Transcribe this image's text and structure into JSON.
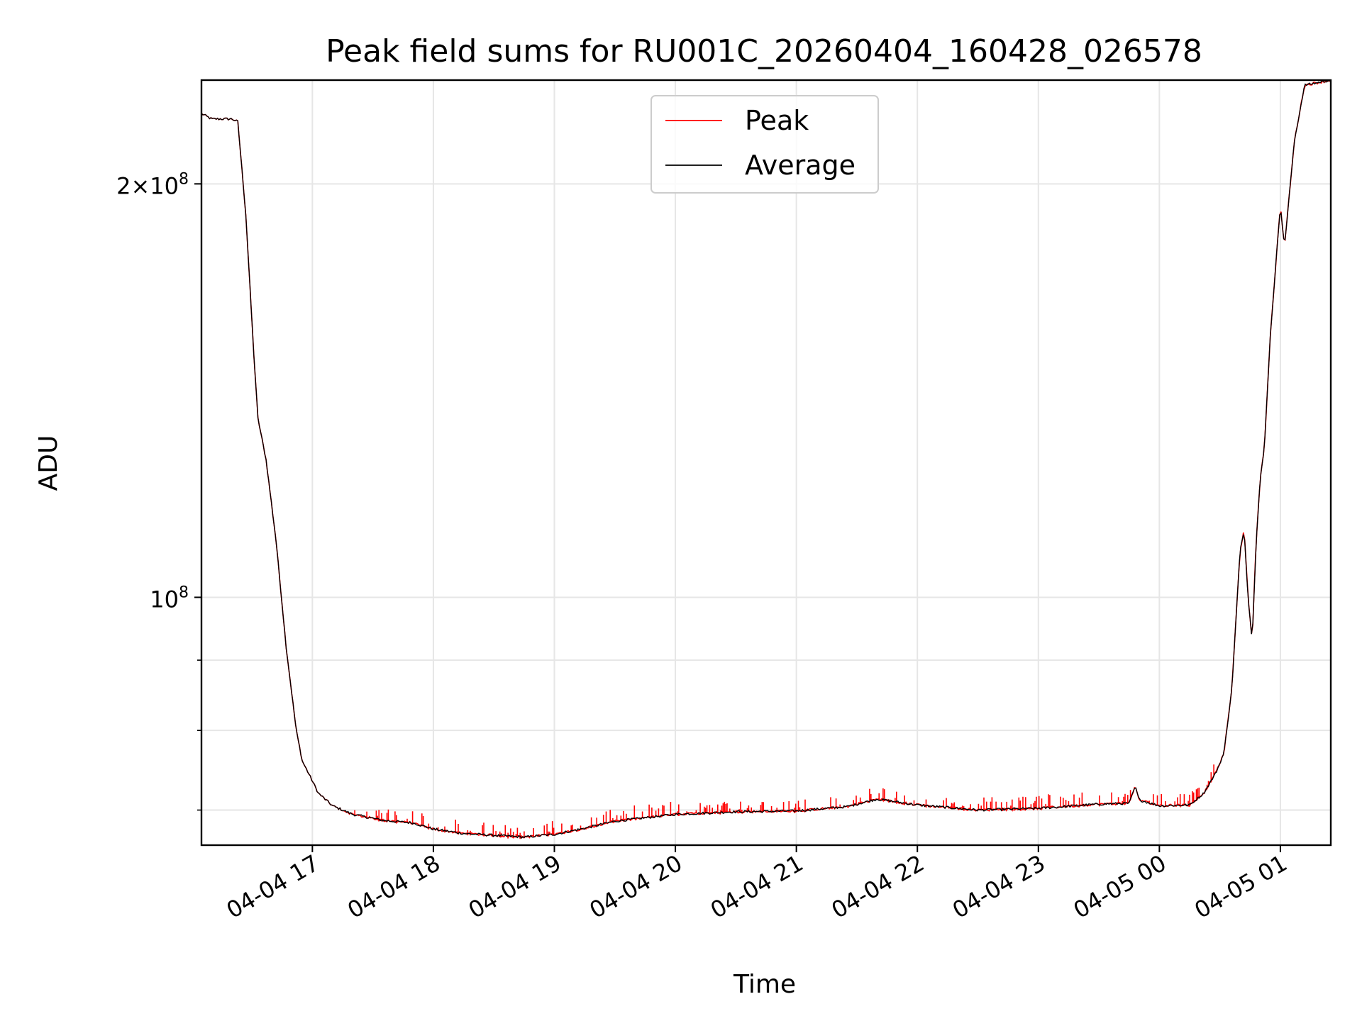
{
  "chart_data": {
    "type": "line",
    "title": "Peak field sums for RU001C_20260404_160428_026578",
    "xlabel": "Time",
    "ylabel": "ADU",
    "yscale": "log",
    "grid": true,
    "legend_position": "top-center",
    "xlim": [
      "2026-04-04 16:05",
      "2026-04-05 01:25"
    ],
    "ylim": [
      66000000,
      238000000
    ],
    "x_ticks": [
      {
        "label": "04-04 17",
        "time": "2026-04-04 17:00"
      },
      {
        "label": "04-04 18",
        "time": "2026-04-04 18:00"
      },
      {
        "label": "04-04 19",
        "time": "2026-04-04 19:00"
      },
      {
        "label": "04-04 20",
        "time": "2026-04-04 20:00"
      },
      {
        "label": "04-04 21",
        "time": "2026-04-04 21:00"
      },
      {
        "label": "04-04 22",
        "time": "2026-04-04 22:00"
      },
      {
        "label": "04-04 23",
        "time": "2026-04-04 23:00"
      },
      {
        "label": "04-05 00",
        "time": "2026-04-05 00:00"
      },
      {
        "label": "04-05 01",
        "time": "2026-04-05 01:00"
      }
    ],
    "y_major_ticks": [
      {
        "value": 100000000,
        "base": "10",
        "exp": "8",
        "coef": ""
      },
      {
        "value": 200000000,
        "base": "10",
        "exp": "8",
        "coef": "2×"
      }
    ],
    "y_minor_ticks": [
      70000000,
      80000000,
      90000000
    ],
    "series": [
      {
        "name": "Peak",
        "color": "#ff0000",
        "spiky": true,
        "points": [
          [
            "2026-04-04 16:05",
            225000000
          ],
          [
            "2026-04-04 16:10",
            223000000
          ],
          [
            "2026-04-04 16:20",
            223000000
          ],
          [
            "2026-04-04 16:23",
            222000000
          ],
          [
            "2026-04-04 16:27",
            190000000
          ],
          [
            "2026-04-04 16:31",
            150000000
          ],
          [
            "2026-04-04 16:33",
            135000000
          ],
          [
            "2026-04-04 16:37",
            126000000
          ],
          [
            "2026-04-04 16:42",
            110000000
          ],
          [
            "2026-04-04 16:47",
            92000000
          ],
          [
            "2026-04-04 16:52",
            80000000
          ],
          [
            "2026-04-04 16:55",
            76000000
          ],
          [
            "2026-04-04 16:58",
            74500000
          ],
          [
            "2026-04-04 17:03",
            72000000
          ],
          [
            "2026-04-04 17:10",
            70500000
          ],
          [
            "2026-04-04 17:20",
            69500000
          ],
          [
            "2026-04-04 17:35",
            68800000
          ],
          [
            "2026-04-04 17:50",
            68500000
          ],
          [
            "2026-04-04 18:00",
            67800000
          ],
          [
            "2026-04-04 18:15",
            67300000
          ],
          [
            "2026-04-04 18:30",
            67100000
          ],
          [
            "2026-04-04 18:45",
            66900000
          ],
          [
            "2026-04-04 19:00",
            67200000
          ],
          [
            "2026-04-04 19:15",
            67900000
          ],
          [
            "2026-04-04 19:30",
            68700000
          ],
          [
            "2026-04-04 20:00",
            69500000
          ],
          [
            "2026-04-04 20:30",
            69800000
          ],
          [
            "2026-04-04 21:00",
            69900000
          ],
          [
            "2026-04-04 21:25",
            70400000
          ],
          [
            "2026-04-04 21:40",
            71300000
          ],
          [
            "2026-04-04 22:00",
            70600000
          ],
          [
            "2026-04-04 22:30",
            70000000
          ],
          [
            "2026-04-04 23:00",
            70200000
          ],
          [
            "2026-04-04 23:30",
            70700000
          ],
          [
            "2026-04-04 23:45",
            70800000
          ],
          [
            "2026-04-04 23:48",
            72800000
          ],
          [
            "2026-04-04 23:50",
            71200000
          ],
          [
            "2026-04-05 00:00",
            70500000
          ],
          [
            "2026-04-05 00:15",
            70600000
          ],
          [
            "2026-04-05 00:22",
            72000000
          ],
          [
            "2026-04-05 00:28",
            74500000
          ],
          [
            "2026-04-05 00:32",
            77000000
          ],
          [
            "2026-04-05 00:36",
            86000000
          ],
          [
            "2026-04-05 00:40",
            108000000
          ],
          [
            "2026-04-05 00:42",
            112000000
          ],
          [
            "2026-04-05 00:44",
            100000000
          ],
          [
            "2026-04-05 00:46",
            93000000
          ],
          [
            "2026-04-05 00:48",
            110000000
          ],
          [
            "2026-04-05 00:50",
            122000000
          ],
          [
            "2026-04-05 00:52",
            128000000
          ],
          [
            "2026-04-05 00:55",
            155000000
          ],
          [
            "2026-04-05 01:00",
            193000000
          ],
          [
            "2026-04-05 01:02",
            180000000
          ],
          [
            "2026-04-05 01:07",
            215000000
          ],
          [
            "2026-04-05 01:12",
            236000000
          ],
          [
            "2026-04-05 01:25",
            238000000
          ]
        ]
      },
      {
        "name": "Average",
        "color": "#000000",
        "spiky": false,
        "points": [
          [
            "2026-04-04 16:05",
            225000000
          ],
          [
            "2026-04-04 16:10",
            223000000
          ],
          [
            "2026-04-04 16:20",
            223000000
          ],
          [
            "2026-04-04 16:23",
            222000000
          ],
          [
            "2026-04-04 16:27",
            190000000
          ],
          [
            "2026-04-04 16:31",
            150000000
          ],
          [
            "2026-04-04 16:33",
            135000000
          ],
          [
            "2026-04-04 16:37",
            126000000
          ],
          [
            "2026-04-04 16:42",
            110000000
          ],
          [
            "2026-04-04 16:47",
            92000000
          ],
          [
            "2026-04-04 16:52",
            80000000
          ],
          [
            "2026-04-04 16:55",
            76000000
          ],
          [
            "2026-04-04 16:58",
            74500000
          ],
          [
            "2026-04-04 17:03",
            72000000
          ],
          [
            "2026-04-04 17:10",
            70500000
          ],
          [
            "2026-04-04 17:20",
            69500000
          ],
          [
            "2026-04-04 17:35",
            68800000
          ],
          [
            "2026-04-04 17:50",
            68500000
          ],
          [
            "2026-04-04 18:00",
            67800000
          ],
          [
            "2026-04-04 18:15",
            67300000
          ],
          [
            "2026-04-04 18:30",
            67100000
          ],
          [
            "2026-04-04 18:45",
            66900000
          ],
          [
            "2026-04-04 19:00",
            67200000
          ],
          [
            "2026-04-04 19:15",
            67900000
          ],
          [
            "2026-04-04 19:30",
            68700000
          ],
          [
            "2026-04-04 20:00",
            69500000
          ],
          [
            "2026-04-04 20:30",
            69800000
          ],
          [
            "2026-04-04 21:00",
            69900000
          ],
          [
            "2026-04-04 21:25",
            70400000
          ],
          [
            "2026-04-04 21:40",
            71300000
          ],
          [
            "2026-04-04 22:00",
            70600000
          ],
          [
            "2026-04-04 22:30",
            70000000
          ],
          [
            "2026-04-04 23:00",
            70200000
          ],
          [
            "2026-04-04 23:30",
            70700000
          ],
          [
            "2026-04-04 23:45",
            70800000
          ],
          [
            "2026-04-04 23:48",
            72800000
          ],
          [
            "2026-04-04 23:50",
            71200000
          ],
          [
            "2026-04-05 00:00",
            70500000
          ],
          [
            "2026-04-05 00:15",
            70600000
          ],
          [
            "2026-04-05 00:22",
            72000000
          ],
          [
            "2026-04-05 00:28",
            74500000
          ],
          [
            "2026-04-05 00:32",
            77000000
          ],
          [
            "2026-04-05 00:36",
            86000000
          ],
          [
            "2026-04-05 00:40",
            108000000
          ],
          [
            "2026-04-05 00:42",
            112000000
          ],
          [
            "2026-04-05 00:44",
            100000000
          ],
          [
            "2026-04-05 00:46",
            93000000
          ],
          [
            "2026-04-05 00:48",
            110000000
          ],
          [
            "2026-04-05 00:50",
            122000000
          ],
          [
            "2026-04-05 00:52",
            128000000
          ],
          [
            "2026-04-05 00:55",
            155000000
          ],
          [
            "2026-04-05 01:00",
            193000000
          ],
          [
            "2026-04-05 01:02",
            180000000
          ],
          [
            "2026-04-05 01:07",
            215000000
          ],
          [
            "2026-04-05 01:12",
            236000000
          ],
          [
            "2026-04-05 01:25",
            238000000
          ]
        ]
      }
    ]
  }
}
